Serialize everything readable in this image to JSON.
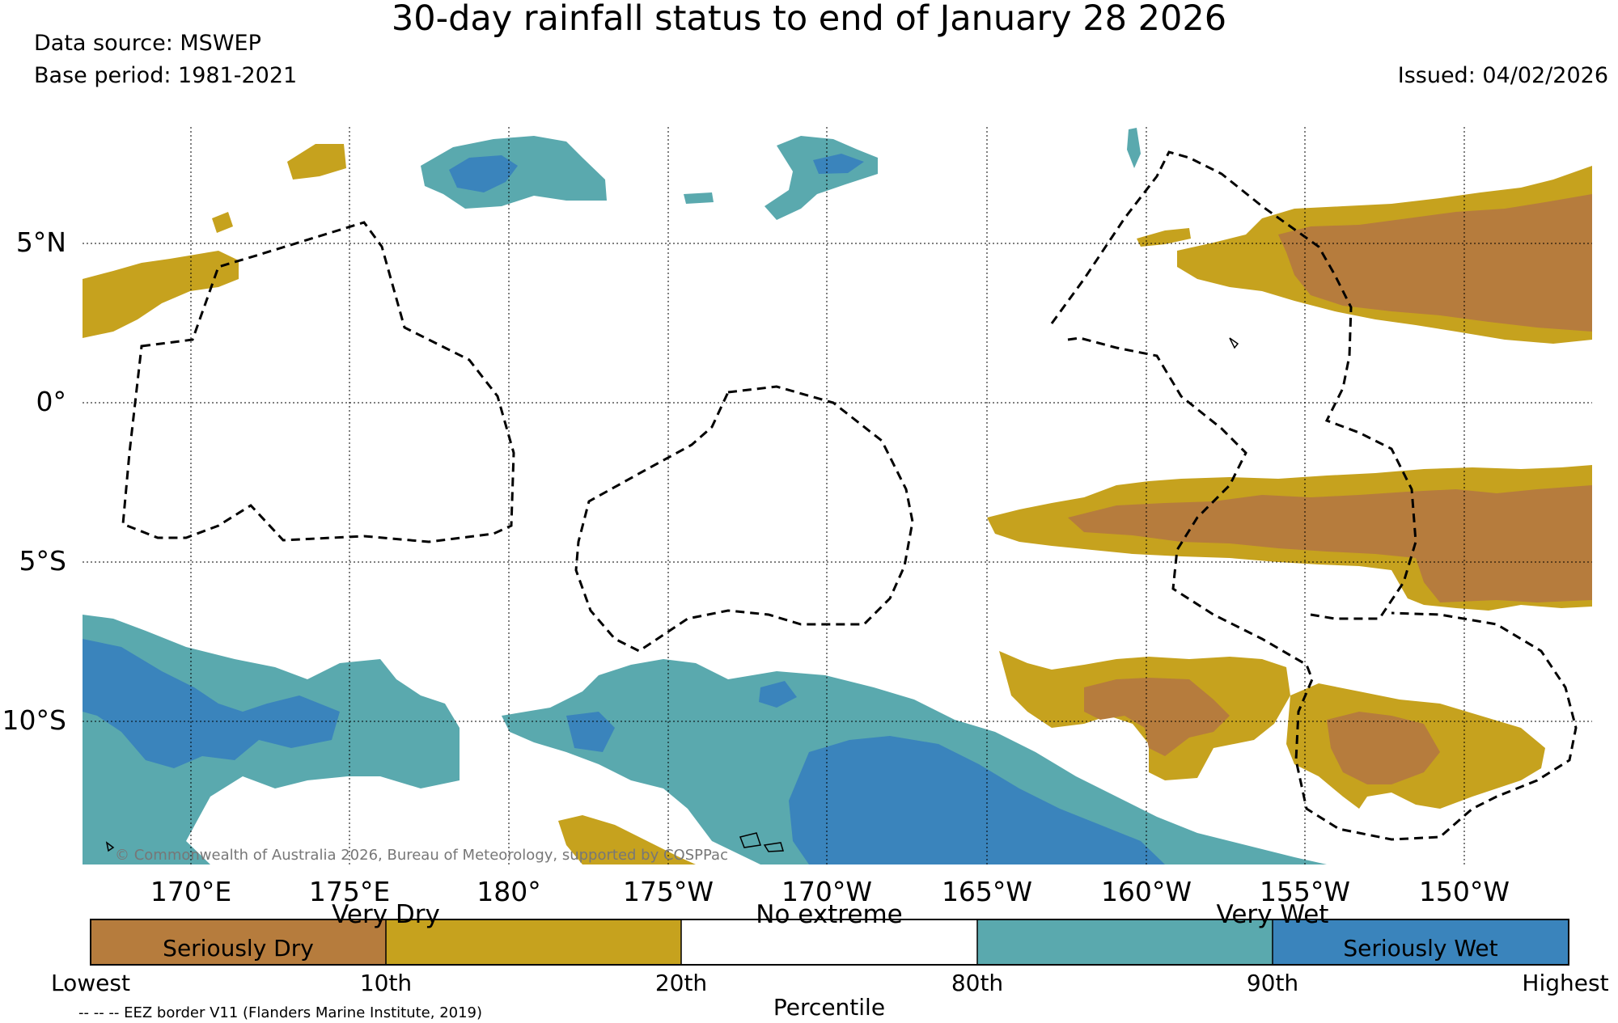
{
  "title": "30-day rainfall status to end of January 28 2026",
  "data_source": "Data source: MSWEP",
  "base_period": "Base period: 1981-2021",
  "issued": "Issued: 04/02/2026",
  "copyright": "© Commonwealth of Australia 2026, Bureau of Meteorology, supported by COSPPac",
  "axes": {
    "lon_labels": [
      "170°E",
      "175°E",
      "180°",
      "175°W",
      "170°W",
      "165°W",
      "160°W",
      "155°W",
      "150°W"
    ],
    "lat_labels": [
      "5°N",
      "0°",
      "5°S",
      "10°S"
    ]
  },
  "legend": {
    "categories": [
      {
        "name": "Seriously Dry",
        "color": "#b67c3d"
      },
      {
        "name": "Very Dry",
        "color": "#c6a21e"
      },
      {
        "name": "No extreme",
        "color": "#ffffff"
      },
      {
        "name": "Very Wet",
        "color": "#5aa9ae"
      },
      {
        "name": "Seriously Wet",
        "color": "#3a84bc"
      }
    ],
    "ticks": [
      "Lowest",
      "10th",
      "20th",
      "80th",
      "90th",
      "Highest"
    ],
    "axis_label": "Percentile"
  },
  "eez_note": "-- -- -- EEZ border V11 (Flanders Marine Institute, 2019)"
}
